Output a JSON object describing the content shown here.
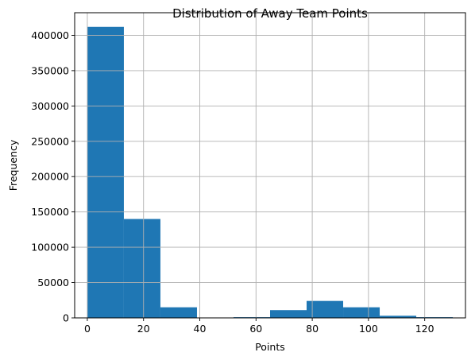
{
  "chart_data": {
    "type": "bar",
    "title": "Distribution of Away Team Points",
    "xlabel": "Points",
    "ylabel": "Frequency",
    "bin_edges": [
      0,
      13,
      26,
      39,
      52,
      65,
      78,
      91,
      104,
      117,
      130
    ],
    "values": [
      412000,
      140000,
      15000,
      0,
      1000,
      11000,
      24000,
      15000,
      3000,
      1000
    ],
    "xlim": [
      -4.5,
      134.5
    ],
    "ylim": [
      0,
      432000
    ],
    "xticks": [
      0,
      20,
      40,
      60,
      80,
      100,
      120
    ],
    "xtick_labels": [
      "0",
      "20",
      "40",
      "60",
      "80",
      "100",
      "120"
    ],
    "yticks": [
      0,
      50000,
      100000,
      150000,
      200000,
      250000,
      300000,
      350000,
      400000
    ],
    "ytick_labels": [
      "0",
      "50000",
      "100000",
      "150000",
      "200000",
      "250000",
      "300000",
      "350000",
      "400000"
    ],
    "grid": true,
    "bar_color": "#1f77b4",
    "grid_color": "#b0b0b0"
  }
}
